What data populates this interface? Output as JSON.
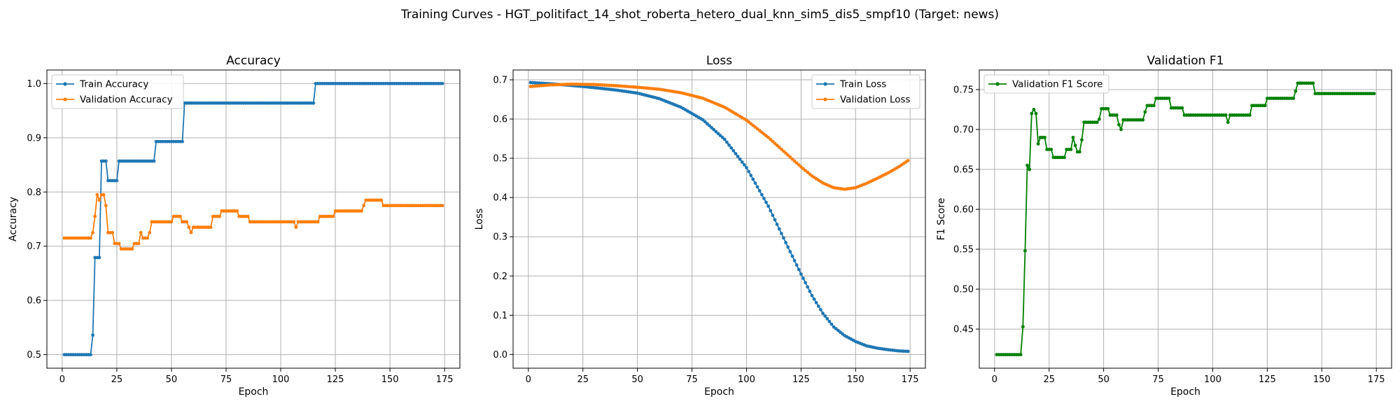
{
  "suptitle": "Training Curves - HGT_politifact_14_shot_roberta_hetero_dual_knn_sim5_dis5_smpf10 (Target: news)",
  "chart_data": [
    {
      "type": "line",
      "title": "Accuracy",
      "xlabel": "Epoch",
      "ylabel": "Accuracy",
      "xlim": [
        -7,
        182
      ],
      "ylim": [
        0.475,
        1.025
      ],
      "xticks": [
        0,
        25,
        50,
        75,
        100,
        125,
        150,
        175
      ],
      "yticks": [
        0.5,
        0.6,
        0.7,
        0.8,
        0.9,
        1.0
      ],
      "ytick_labels": [
        "0.5",
        "0.6",
        "0.7",
        "0.8",
        "0.9",
        "1.0"
      ],
      "grid": true,
      "legend": "upper left",
      "series": [
        {
          "name": "Train Accuracy",
          "color": "#1f77b4",
          "keypoints": [
            [
              1,
              0.5
            ],
            [
              13,
              0.5
            ],
            [
              14,
              0.536
            ],
            [
              15,
              0.679
            ],
            [
              17,
              0.679
            ],
            [
              18,
              0.857
            ],
            [
              20,
              0.857
            ],
            [
              21,
              0.821
            ],
            [
              25,
              0.821
            ],
            [
              26,
              0.857
            ],
            [
              42,
              0.857
            ],
            [
              43,
              0.893
            ],
            [
              55,
              0.893
            ],
            [
              56,
              0.964
            ],
            [
              115,
              0.964
            ],
            [
              116,
              1.0
            ],
            [
              174,
              1.0
            ]
          ]
        },
        {
          "name": "Validation Accuracy",
          "color": "#ff7f0e",
          "keypoints": [
            [
              1,
              0.715
            ],
            [
              13,
              0.715
            ],
            [
              14,
              0.725
            ],
            [
              15,
              0.755
            ],
            [
              16,
              0.795
            ],
            [
              17,
              0.785
            ],
            [
              18,
              0.795
            ],
            [
              19,
              0.795
            ],
            [
              20,
              0.775
            ],
            [
              21,
              0.725
            ],
            [
              23,
              0.725
            ],
            [
              24,
              0.705
            ],
            [
              26,
              0.705
            ],
            [
              27,
              0.695
            ],
            [
              32,
              0.695
            ],
            [
              33,
              0.705
            ],
            [
              35,
              0.705
            ],
            [
              36,
              0.725
            ],
            [
              37,
              0.715
            ],
            [
              39,
              0.715
            ],
            [
              40,
              0.725
            ],
            [
              41,
              0.745
            ],
            [
              50,
              0.745
            ],
            [
              51,
              0.755
            ],
            [
              54,
              0.755
            ],
            [
              55,
              0.745
            ],
            [
              57,
              0.745
            ],
            [
              58,
              0.735
            ],
            [
              59,
              0.725
            ],
            [
              60,
              0.735
            ],
            [
              68,
              0.735
            ],
            [
              69,
              0.755
            ],
            [
              72,
              0.755
            ],
            [
              73,
              0.765
            ],
            [
              80,
              0.765
            ],
            [
              81,
              0.755
            ],
            [
              85,
              0.755
            ],
            [
              86,
              0.745
            ],
            [
              106,
              0.745
            ],
            [
              107,
              0.735
            ],
            [
              108,
              0.745
            ],
            [
              117,
              0.745
            ],
            [
              118,
              0.755
            ],
            [
              124,
              0.755
            ],
            [
              125,
              0.765
            ],
            [
              137,
              0.765
            ],
            [
              138,
              0.775
            ],
            [
              139,
              0.785
            ],
            [
              146,
              0.785
            ],
            [
              147,
              0.775
            ],
            [
              174,
              0.775
            ]
          ]
        }
      ]
    },
    {
      "type": "line",
      "title": "Loss",
      "xlabel": "Epoch",
      "ylabel": "Loss",
      "xlim": [
        -7,
        182
      ],
      "ylim": [
        -0.035,
        0.725
      ],
      "xticks": [
        0,
        25,
        50,
        75,
        100,
        125,
        150,
        175
      ],
      "yticks": [
        0.0,
        0.1,
        0.2,
        0.3,
        0.4,
        0.5,
        0.6,
        0.7
      ],
      "ytick_labels": [
        "0.0",
        "0.1",
        "0.2",
        "0.3",
        "0.4",
        "0.5",
        "0.6",
        "0.7"
      ],
      "grid": true,
      "legend": "upper right",
      "series": [
        {
          "name": "Train Loss",
          "color": "#1f77b4",
          "keypoints": [
            [
              1,
              0.693
            ],
            [
              10,
              0.69
            ],
            [
              25,
              0.683
            ],
            [
              40,
              0.674
            ],
            [
              50,
              0.666
            ],
            [
              60,
              0.652
            ],
            [
              70,
              0.63
            ],
            [
              80,
              0.598
            ],
            [
              90,
              0.548
            ],
            [
              100,
              0.476
            ],
            [
              110,
              0.378
            ],
            [
              120,
              0.262
            ],
            [
              125,
              0.205
            ],
            [
              130,
              0.15
            ],
            [
              135,
              0.105
            ],
            [
              140,
              0.07
            ],
            [
              145,
              0.048
            ],
            [
              150,
              0.033
            ],
            [
              155,
              0.022
            ],
            [
              160,
              0.016
            ],
            [
              165,
              0.012
            ],
            [
              170,
              0.009
            ],
            [
              174,
              0.008
            ]
          ]
        },
        {
          "name": "Validation Loss",
          "color": "#ff7f0e",
          "keypoints": [
            [
              1,
              0.683
            ],
            [
              10,
              0.687
            ],
            [
              20,
              0.689
            ],
            [
              30,
              0.688
            ],
            [
              40,
              0.685
            ],
            [
              50,
              0.681
            ],
            [
              60,
              0.676
            ],
            [
              70,
              0.667
            ],
            [
              80,
              0.653
            ],
            [
              90,
              0.63
            ],
            [
              100,
              0.597
            ],
            [
              110,
              0.553
            ],
            [
              120,
              0.503
            ],
            [
              125,
              0.478
            ],
            [
              130,
              0.455
            ],
            [
              135,
              0.437
            ],
            [
              140,
              0.425
            ],
            [
              145,
              0.421
            ],
            [
              150,
              0.425
            ],
            [
              155,
              0.436
            ],
            [
              160,
              0.449
            ],
            [
              165,
              0.463
            ],
            [
              170,
              0.479
            ],
            [
              174,
              0.494
            ]
          ]
        }
      ]
    },
    {
      "type": "line",
      "title": "Validation F1",
      "xlabel": "Epoch",
      "ylabel": "F1 Score",
      "xlim": [
        -7,
        182
      ],
      "ylim": [
        0.401,
        0.7745
      ],
      "xticks": [
        0,
        25,
        50,
        75,
        100,
        125,
        150,
        175
      ],
      "yticks": [
        0.45,
        0.5,
        0.55,
        0.6,
        0.65,
        0.7,
        0.75
      ],
      "ytick_labels": [
        "0.45",
        "0.50",
        "0.55",
        "0.60",
        "0.65",
        "0.70",
        "0.75"
      ],
      "grid": true,
      "legend": "upper left",
      "series": [
        {
          "name": "Validation F1 Score",
          "color": "#008000",
          "keypoints": [
            [
              1,
              0.418
            ],
            [
              12,
              0.418
            ],
            [
              13,
              0.453
            ],
            [
              14,
              0.548
            ],
            [
              15,
              0.655
            ],
            [
              16,
              0.65
            ],
            [
              17,
              0.72
            ],
            [
              18,
              0.725
            ],
            [
              19,
              0.72
            ],
            [
              20,
              0.682
            ],
            [
              21,
              0.69
            ],
            [
              23,
              0.69
            ],
            [
              24,
              0.675
            ],
            [
              26,
              0.675
            ],
            [
              27,
              0.665
            ],
            [
              32,
              0.665
            ],
            [
              33,
              0.675
            ],
            [
              35,
              0.675
            ],
            [
              36,
              0.69
            ],
            [
              37,
              0.68
            ],
            [
              38,
              0.672
            ],
            [
              39,
              0.672
            ],
            [
              40,
              0.687
            ],
            [
              41,
              0.709
            ],
            [
              47,
              0.709
            ],
            [
              48,
              0.713
            ],
            [
              49,
              0.726
            ],
            [
              52,
              0.726
            ],
            [
              53,
              0.718
            ],
            [
              56,
              0.718
            ],
            [
              57,
              0.706
            ],
            [
              58,
              0.7
            ],
            [
              59,
              0.712
            ],
            [
              68,
              0.712
            ],
            [
              69,
              0.722
            ],
            [
              70,
              0.73
            ],
            [
              73,
              0.73
            ],
            [
              74,
              0.739
            ],
            [
              80,
              0.739
            ],
            [
              81,
              0.727
            ],
            [
              86,
              0.727
            ],
            [
              87,
              0.718
            ],
            [
              106,
              0.718
            ],
            [
              107,
              0.709
            ],
            [
              108,
              0.718
            ],
            [
              117,
              0.718
            ],
            [
              118,
              0.73
            ],
            [
              124,
              0.73
            ],
            [
              125,
              0.739
            ],
            [
              137,
              0.739
            ],
            [
              138,
              0.748
            ],
            [
              139,
              0.758
            ],
            [
              146,
              0.758
            ],
            [
              147,
              0.745
            ],
            [
              174,
              0.745
            ]
          ]
        }
      ]
    }
  ]
}
